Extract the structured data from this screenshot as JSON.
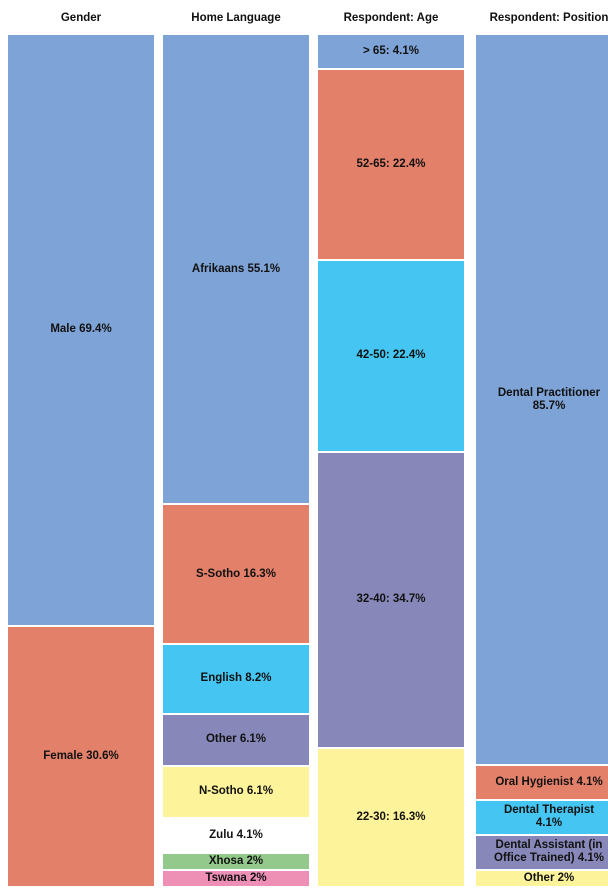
{
  "chart_data": {
    "type": "bar",
    "subtype": "stacked-100-percent-columns",
    "columns": [
      {
        "title": "Gender",
        "segments": [
          {
            "label": "Male 69.4%",
            "value": 69.4,
            "color": "#7ea3d6"
          },
          {
            "label": "Female 30.6%",
            "value": 30.6,
            "color": "#e3806a"
          }
        ]
      },
      {
        "title": "Home Language",
        "segments": [
          {
            "label": "Afrikaans 55.1%",
            "value": 55.1,
            "color": "#7ea3d6"
          },
          {
            "label": "S-Sotho 16.3%",
            "value": 16.3,
            "color": "#e3806a"
          },
          {
            "label": "English 8.2%",
            "value": 8.2,
            "color": "#45c6f2"
          },
          {
            "label": "Other 6.1%",
            "value": 6.1,
            "color": "#8788b9"
          },
          {
            "label": "N-Sotho 6.1%",
            "value": 6.1,
            "color": "#fdf39b"
          },
          {
            "label": "Zulu 4.1%",
            "value": 4.1,
            "color": "#ffffff"
          },
          {
            "label": "Xhosa 2%",
            "value": 2.0,
            "color": "#93c98a"
          },
          {
            "label": "Tswana 2%",
            "value": 2.0,
            "color": "#ee8fb5"
          }
        ]
      },
      {
        "title": "Respondent: Age",
        "segments": [
          {
            "label": "> 65: 4.1%",
            "value": 4.1,
            "color": "#7ea3d6"
          },
          {
            "label": "52-65: 22.4%",
            "value": 22.4,
            "color": "#e3806a"
          },
          {
            "label": "42-50: 22.4%",
            "value": 22.4,
            "color": "#45c6f2"
          },
          {
            "label": "32-40: 34.7%",
            "value": 34.7,
            "color": "#8788b9"
          },
          {
            "label": "22-30: 16.3%",
            "value": 16.3,
            "color": "#fdf39b"
          }
        ]
      },
      {
        "title": "Respondent: Position",
        "segments": [
          {
            "label": "Dental Practitioner\n85.7%",
            "value": 85.7,
            "color": "#7ea3d6"
          },
          {
            "label": "Oral Hygienist 4.1%",
            "value": 4.1,
            "color": "#e3806a"
          },
          {
            "label": "Dental Therapist\n4.1%",
            "value": 4.1,
            "color": "#45c6f2"
          },
          {
            "label": "Dental Assistant (in\nOffice Trained) 4.1%",
            "value": 4.1,
            "color": "#8788b9"
          },
          {
            "label": "Other 2%",
            "value": 2.0,
            "color": "#fdf39b"
          }
        ]
      }
    ]
  }
}
